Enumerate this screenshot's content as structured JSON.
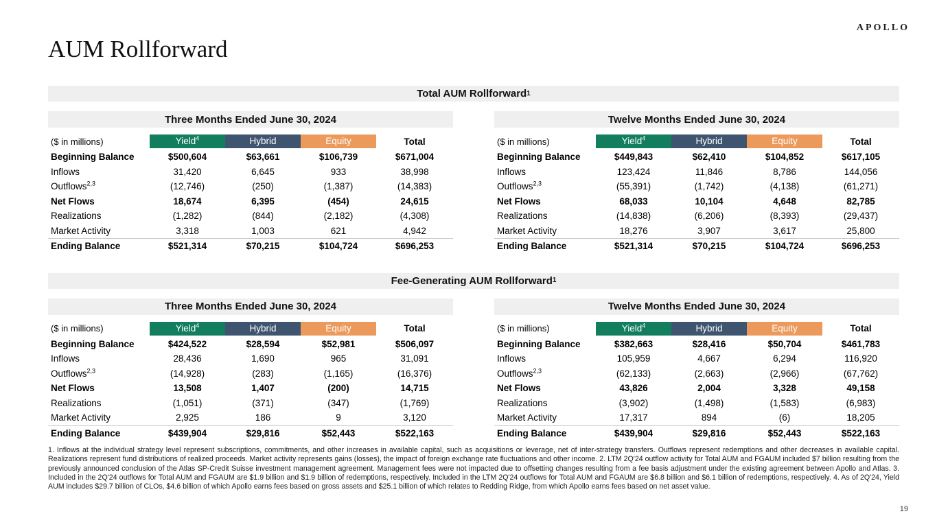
{
  "brand": {
    "logo": "APOLLO"
  },
  "page": {
    "title": "AUM Rollforward",
    "number": "19"
  },
  "colors": {
    "yield": "#127e5e",
    "hybrid": "#3f556f",
    "equity": "#eb9a5c",
    "band": "#efefef"
  },
  "columns": [
    {
      "label": "Yield",
      "sup": "4",
      "color": "#127e5e"
    },
    {
      "label": "Hybrid",
      "sup": "",
      "color": "#3f556f"
    },
    {
      "label": "Equity",
      "sup": "",
      "color": "#eb9a5c"
    },
    {
      "label": "Total",
      "sup": "",
      "color": ""
    }
  ],
  "sections": [
    {
      "title": "Total AUM Rollforward",
      "title_sup": "1",
      "tables": [
        {
          "period": "Three Months Ended June 30, 2024",
          "unit_label": "($ in millions)",
          "rows": [
            {
              "label": "Beginning Balance",
              "sup": "",
              "bold": true,
              "rule": false,
              "values": [
                "$500,604",
                "$63,661",
                "$106,739",
                "$671,004"
              ]
            },
            {
              "label": "Inflows",
              "sup": "",
              "bold": false,
              "rule": false,
              "values": [
                "31,420",
                "6,645",
                "933",
                "38,998"
              ]
            },
            {
              "label": "Outflows",
              "sup": "2,3",
              "bold": false,
              "rule": false,
              "values": [
                "(12,746)",
                "(250)",
                "(1,387)",
                "(14,383)"
              ]
            },
            {
              "label": "Net Flows",
              "sup": "",
              "bold": true,
              "rule": false,
              "values": [
                "18,674",
                "6,395",
                "(454)",
                "24,615"
              ]
            },
            {
              "label": "Realizations",
              "sup": "",
              "bold": false,
              "rule": false,
              "values": [
                "(1,282)",
                "(844)",
                "(2,182)",
                "(4,308)"
              ]
            },
            {
              "label": "Market Activity",
              "sup": "",
              "bold": false,
              "rule": false,
              "values": [
                "3,318",
                "1,003",
                "621",
                "4,942"
              ]
            },
            {
              "label": "Ending Balance",
              "sup": "",
              "bold": true,
              "rule": true,
              "values": [
                "$521,314",
                "$70,215",
                "$104,724",
                "$696,253"
              ]
            }
          ]
        },
        {
          "period": "Twelve Months Ended June 30, 2024",
          "unit_label": "($ in millions)",
          "rows": [
            {
              "label": "Beginning Balance",
              "sup": "",
              "bold": true,
              "rule": false,
              "values": [
                "$449,843",
                "$62,410",
                "$104,852",
                "$617,105"
              ]
            },
            {
              "label": "Inflows",
              "sup": "",
              "bold": false,
              "rule": false,
              "values": [
                "123,424",
                "11,846",
                "8,786",
                "144,056"
              ]
            },
            {
              "label": "Outflows",
              "sup": "2,3",
              "bold": false,
              "rule": false,
              "values": [
                "(55,391)",
                "(1,742)",
                "(4,138)",
                "(61,271)"
              ]
            },
            {
              "label": "Net Flows",
              "sup": "",
              "bold": true,
              "rule": false,
              "values": [
                "68,033",
                "10,104",
                "4,648",
                "82,785"
              ]
            },
            {
              "label": "Realizations",
              "sup": "",
              "bold": false,
              "rule": false,
              "values": [
                "(14,838)",
                "(6,206)",
                "(8,393)",
                "(29,437)"
              ]
            },
            {
              "label": "Market Activity",
              "sup": "",
              "bold": false,
              "rule": false,
              "values": [
                "18,276",
                "3,907",
                "3,617",
                "25,800"
              ]
            },
            {
              "label": "Ending Balance",
              "sup": "",
              "bold": true,
              "rule": true,
              "values": [
                "$521,314",
                "$70,215",
                "$104,724",
                "$696,253"
              ]
            }
          ]
        }
      ]
    },
    {
      "title": "Fee-Generating AUM Rollforward",
      "title_sup": "1",
      "tables": [
        {
          "period": "Three Months Ended June 30, 2024",
          "unit_label": "($ in millions)",
          "rows": [
            {
              "label": "Beginning Balance",
              "sup": "",
              "bold": true,
              "rule": false,
              "values": [
                "$424,522",
                "$28,594",
                "$52,981",
                "$506,097"
              ]
            },
            {
              "label": "Inflows",
              "sup": "",
              "bold": false,
              "rule": false,
              "values": [
                "28,436",
                "1,690",
                "965",
                "31,091"
              ]
            },
            {
              "label": "Outflows",
              "sup": "2,3",
              "bold": false,
              "rule": false,
              "values": [
                "(14,928)",
                "(283)",
                "(1,165)",
                "(16,376)"
              ]
            },
            {
              "label": "Net Flows",
              "sup": "",
              "bold": true,
              "rule": false,
              "values": [
                "13,508",
                "1,407",
                "(200)",
                "14,715"
              ]
            },
            {
              "label": "Realizations",
              "sup": "",
              "bold": false,
              "rule": false,
              "values": [
                "(1,051)",
                "(371)",
                "(347)",
                "(1,769)"
              ]
            },
            {
              "label": "Market Activity",
              "sup": "",
              "bold": false,
              "rule": false,
              "values": [
                "2,925",
                "186",
                "9",
                "3,120"
              ]
            },
            {
              "label": "Ending Balance",
              "sup": "",
              "bold": true,
              "rule": true,
              "values": [
                "$439,904",
                "$29,816",
                "$52,443",
                "$522,163"
              ]
            }
          ]
        },
        {
          "period": "Twelve Months Ended June 30, 2024",
          "unit_label": "($ in millions)",
          "rows": [
            {
              "label": "Beginning Balance",
              "sup": "",
              "bold": true,
              "rule": false,
              "values": [
                "$382,663",
                "$28,416",
                "$50,704",
                "$461,783"
              ]
            },
            {
              "label": "Inflows",
              "sup": "",
              "bold": false,
              "rule": false,
              "values": [
                "105,959",
                "4,667",
                "6,294",
                "116,920"
              ]
            },
            {
              "label": "Outflows",
              "sup": "2,3",
              "bold": false,
              "rule": false,
              "values": [
                "(62,133)",
                "(2,663)",
                "(2,966)",
                "(67,762)"
              ]
            },
            {
              "label": "Net Flows",
              "sup": "",
              "bold": true,
              "rule": false,
              "values": [
                "43,826",
                "2,004",
                "3,328",
                "49,158"
              ]
            },
            {
              "label": "Realizations",
              "sup": "",
              "bold": false,
              "rule": false,
              "values": [
                "(3,902)",
                "(1,498)",
                "(1,583)",
                "(6,983)"
              ]
            },
            {
              "label": "Market Activity",
              "sup": "",
              "bold": false,
              "rule": false,
              "values": [
                "17,317",
                "894",
                "(6)",
                "18,205"
              ]
            },
            {
              "label": "Ending Balance",
              "sup": "",
              "bold": true,
              "rule": true,
              "values": [
                "$439,904",
                "$29,816",
                "$52,443",
                "$522,163"
              ]
            }
          ]
        }
      ]
    }
  ],
  "footnotes": "1. Inflows at the individual strategy level represent subscriptions, commitments, and other increases in available capital, such as acquisitions or leverage, net of inter-strategy transfers. Outflows represent redemptions and other decreases in available capital. Realizations represent fund distributions of realized proceeds. Market activity represents gains (losses), the impact of foreign exchange rate fluctuations and other income. 2. LTM 2Q'24 outflow activity for Total AUM and FGAUM included $7 billion resulting from the previously announced conclusion of the Atlas SP-Credit Suisse investment management agreement. Management fees were not impacted due to offsetting changes resulting from a fee basis adjustment under the existing agreement between Apollo and Atlas. 3. Included in the 2Q'24 outflows for Total AUM and FGAUM are $1.9 billion and $1.9 billion of redemptions, respectively. Included in the LTM 2Q'24 outflows for Total AUM and FGAUM are $6.8 billion and $6.1 billion of redemptions, respectively. 4. As of 2Q'24, Yield AUM includes $29.7 billion of CLOs, $4.6 billion of which Apollo earns fees based on gross assets and $25.1 billion of which relates to Redding Ridge, from which Apollo earns fees based on net asset value."
}
